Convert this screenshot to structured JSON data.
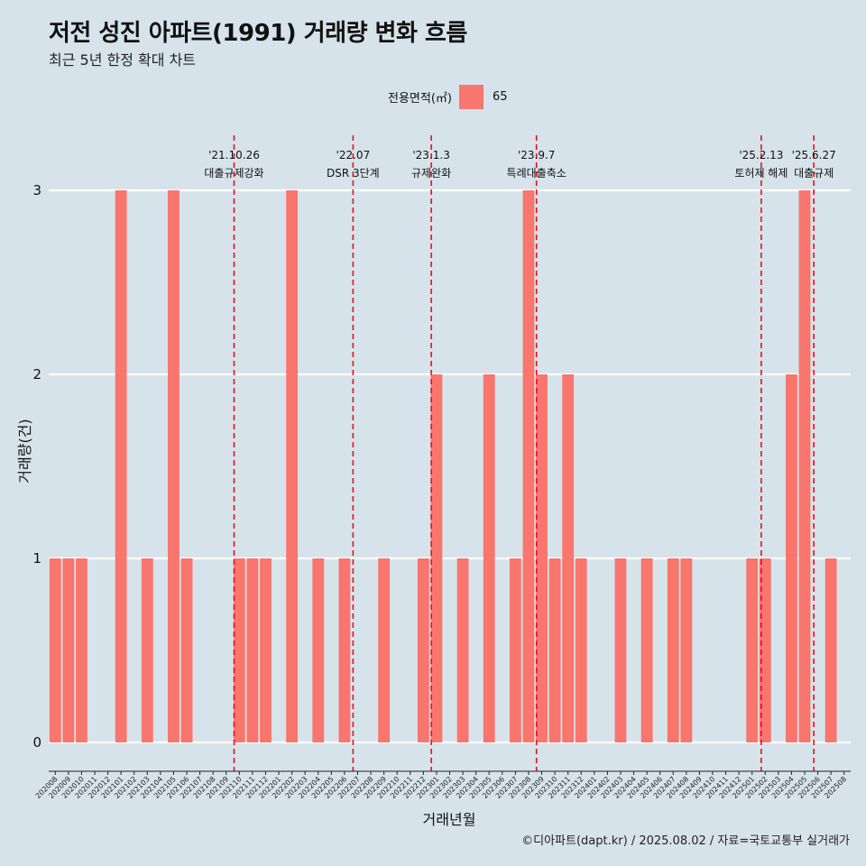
{
  "header": {
    "title": "저전 성진 아파트(1991) 거래량 변화 흐름",
    "subtitle": "최근 5년 한정 확대 차트"
  },
  "legend": {
    "title": "전용면적(㎡)",
    "item": "65",
    "color": "#f8766d"
  },
  "caption": "©디아파트(dapt.kr) / 2025.08.02 / 자료=국토교통부 실거래가",
  "chart_data": {
    "type": "bar",
    "xlabel": "거래년월",
    "ylabel": "거래량(건)",
    "ylim": [
      0,
      3
    ],
    "yticks": [
      "0",
      "1",
      "2",
      "3"
    ],
    "categories": [
      "202008",
      "202009",
      "202010",
      "202011",
      "202012",
      "202101",
      "202102",
      "202103",
      "202104",
      "202105",
      "202106",
      "202107",
      "202108",
      "202109",
      "202110",
      "202111",
      "202112",
      "202201",
      "202202",
      "202203",
      "202204",
      "202205",
      "202206",
      "202207",
      "202208",
      "202209",
      "202210",
      "202211",
      "202212",
      "202301",
      "202302",
      "202303",
      "202304",
      "202305",
      "202306",
      "202307",
      "202308",
      "202309",
      "202310",
      "202311",
      "202312",
      "202401",
      "202402",
      "202403",
      "202404",
      "202405",
      "202406",
      "202407",
      "202408",
      "202409",
      "202410",
      "202411",
      "202412",
      "202501",
      "202502",
      "202503",
      "202504",
      "202505",
      "202506",
      "202507",
      "202508"
    ],
    "series": [
      {
        "name": "65",
        "color": "#f8766d",
        "values": [
          1,
          1,
          1,
          0,
          0,
          3,
          0,
          1,
          0,
          3,
          1,
          0,
          0,
          0,
          1,
          1,
          1,
          0,
          3,
          0,
          1,
          0,
          1,
          0,
          0,
          1,
          0,
          0,
          1,
          2,
          0,
          1,
          0,
          2,
          0,
          1,
          3,
          2,
          1,
          2,
          1,
          0,
          0,
          1,
          0,
          1,
          0,
          1,
          1,
          0,
          0,
          0,
          0,
          1,
          1,
          0,
          2,
          3,
          0,
          1,
          0
        ]
      }
    ],
    "events": [
      {
        "date": "'21.10.26",
        "label": "대출규제강화",
        "position": 14.1
      },
      {
        "date": "'22.07",
        "label": "DSR 3단계",
        "position": 23.15
      },
      {
        "date": "'23.1.3",
        "label": "규제완화",
        "position": 29.1
      },
      {
        "date": "'23.9.7",
        "label": "특례대출축소",
        "position": 37.1
      },
      {
        "date": "'25.2.13",
        "label": "토허제 해제",
        "position": 54.2
      },
      {
        "date": "'25.6.27",
        "label": "대출규제",
        "position": 58.2
      }
    ],
    "grid": true,
    "legend_position": "top"
  }
}
